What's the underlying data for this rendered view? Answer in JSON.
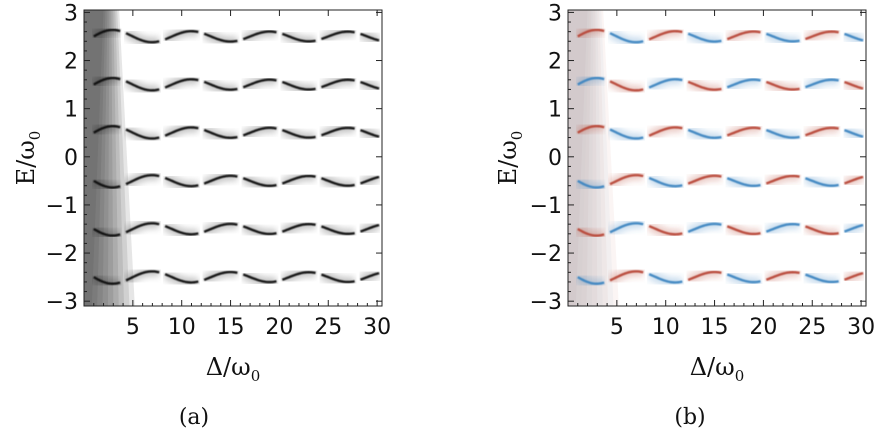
{
  "chart_data": [
    {
      "type": "heatmap",
      "panel_label": "(a)",
      "colormap": "grayscale",
      "band_colors": [
        "#111111"
      ],
      "xlabel": "Δ/ω",
      "xlabel_sub": "0",
      "ylabel": "E/ω",
      "ylabel_sub": "0",
      "xlim": [
        0,
        30.5
      ],
      "ylim": [
        -3.1,
        3.05
      ],
      "xticks": [
        5,
        10,
        15,
        20,
        25,
        30
      ],
      "xtick_labels": [
        "5",
        "10",
        "15",
        "20",
        "25",
        "30"
      ],
      "yticks": [
        -3,
        -2,
        -1,
        0,
        1,
        2,
        3
      ],
      "ytick_labels": [
        "−3",
        "−2",
        "−1",
        "0",
        "1",
        "2",
        "3"
      ],
      "bands": [
        {
          "center": 2.5,
          "amplitude": 0.1
        },
        {
          "center": 1.5,
          "amplitude": 0.1
        },
        {
          "center": 0.5,
          "amplitude": 0.1
        },
        {
          "center": -0.5,
          "amplitude": -0.1
        },
        {
          "center": -1.5,
          "amplitude": -0.1
        },
        {
          "center": -2.5,
          "amplitude": -0.1
        }
      ]
    },
    {
      "type": "heatmap",
      "panel_label": "(b)",
      "colormap": "diverging red-blue",
      "band_colors": [
        "#b84a3a",
        "#3f86c1"
      ],
      "xlabel": "Δ/ω",
      "xlabel_sub": "0",
      "ylabel": "E/ω",
      "ylabel_sub": "0",
      "xlim": [
        0,
        30.5
      ],
      "ylim": [
        -3.1,
        3.05
      ],
      "xticks": [
        5,
        10,
        15,
        20,
        25,
        30
      ],
      "xtick_labels": [
        "5",
        "10",
        "15",
        "20",
        "25",
        "30"
      ],
      "yticks": [
        -3,
        -2,
        -1,
        0,
        1,
        2,
        3
      ],
      "ytick_labels": [
        "−3",
        "−2",
        "−1",
        "0",
        "1",
        "2",
        "3"
      ],
      "bands": [
        {
          "center": 2.5,
          "amplitude": 0.1
        },
        {
          "center": 1.5,
          "amplitude": 0.1
        },
        {
          "center": 0.5,
          "amplitude": 0.1
        },
        {
          "center": -0.5,
          "amplitude": -0.1
        },
        {
          "center": -1.5,
          "amplitude": -0.1
        },
        {
          "center": -2.5,
          "amplitude": -0.1
        }
      ]
    }
  ]
}
